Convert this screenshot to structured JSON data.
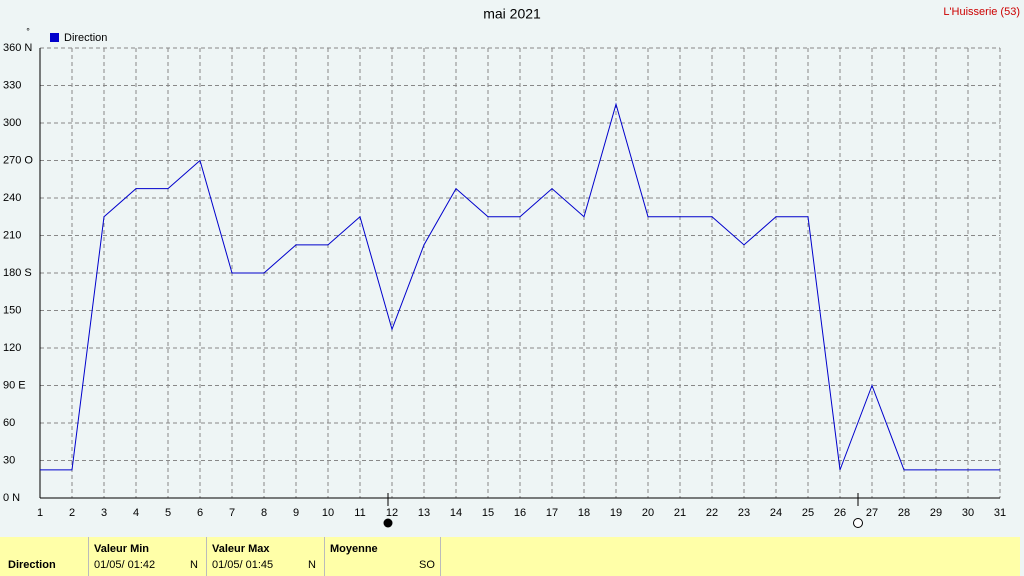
{
  "chart_data": {
    "type": "line",
    "title": "mai 2021",
    "location": "L'Huisserie (53)",
    "y_unit": "°",
    "x": [
      1,
      2,
      3,
      4,
      5,
      6,
      7,
      8,
      9,
      10,
      11,
      12,
      13,
      14,
      15,
      16,
      17,
      18,
      19,
      20,
      21,
      22,
      23,
      24,
      25,
      26,
      27,
      28,
      29,
      30,
      31
    ],
    "xlim": [
      1,
      31
    ],
    "xticks": [
      1,
      2,
      3,
      4,
      5,
      6,
      7,
      8,
      9,
      10,
      11,
      12,
      13,
      14,
      15,
      16,
      17,
      18,
      19,
      20,
      21,
      22,
      23,
      24,
      25,
      26,
      27,
      28,
      29,
      30,
      31
    ],
    "series": [
      {
        "name": "Direction",
        "color": "#0000cc",
        "values": [
          22.5,
          22.5,
          225,
          247.5,
          247.5,
          270,
          180,
          180,
          202.5,
          202.5,
          225,
          135,
          202.5,
          247.5,
          225,
          225,
          247.5,
          225,
          315,
          225,
          225,
          225,
          202.5,
          225,
          225,
          22.5,
          90,
          22.5,
          22.5,
          22.5,
          22.5
        ]
      }
    ],
    "ylim": [
      0,
      360
    ],
    "yticks": [
      {
        "value": 0,
        "label": "0  N"
      },
      30,
      60,
      {
        "value": 90,
        "label": "90  E"
      },
      120,
      150,
      {
        "value": 180,
        "label": "180 S"
      },
      210,
      240,
      {
        "value": 270,
        "label": "270 O"
      },
      300,
      330,
      {
        "value": 360,
        "label": "360 N"
      }
    ],
    "grid": true
  },
  "summary": {
    "row_label": "Direction",
    "min": {
      "header": "Valeur Min",
      "date": "01/05/ 01:42",
      "dir": "N"
    },
    "max": {
      "header": "Valeur Max",
      "date": "01/05/ 01:45",
      "dir": "N"
    },
    "mean": {
      "header": "Moyenne",
      "dir": "SO"
    }
  }
}
